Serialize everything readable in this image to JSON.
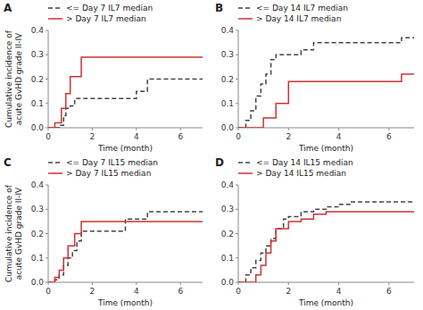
{
  "chart_data": [
    {
      "type": "step",
      "title": "A",
      "xlabel": "Time (month)",
      "ylabel": "Cumulative incidence of acute GvHD grade II-IV",
      "xlim": [
        0,
        7
      ],
      "ylim": [
        0,
        0.4
      ],
      "xticks": [
        0,
        2,
        4,
        6
      ],
      "yticks": [
        {
          "value": 0.0,
          "label": "0.0"
        },
        0.1,
        0.2,
        0.3,
        0.4
      ],
      "legend": "upper left",
      "series": [
        {
          "name": "<= Day 7 IL7 median",
          "color": "#444444",
          "line_style": "dashed",
          "x": [
            0,
            0.3,
            0.5,
            0.7,
            0.8,
            1.0,
            1.2,
            1.5,
            2.0,
            4.0,
            4.5,
            7.0
          ],
          "values": [
            0,
            0.0,
            0.01,
            0.05,
            0.08,
            0.09,
            0.12,
            0.12,
            0.12,
            0.15,
            0.2,
            0.2
          ]
        },
        {
          "name": "> Day 7 IL7 median",
          "color": "#cc3333",
          "line_style": "solid",
          "x": [
            0,
            0.3,
            0.6,
            0.8,
            1.0,
            1.5,
            2.0,
            7.0
          ],
          "values": [
            0,
            0.02,
            0.08,
            0.14,
            0.21,
            0.29,
            0.29,
            0.29
          ]
        }
      ]
    },
    {
      "type": "step",
      "title": "B",
      "xlabel": "Time (month)",
      "xlim": [
        0,
        7
      ],
      "ylim": [
        0,
        0.4
      ],
      "xticks": [
        0,
        2,
        4,
        6
      ],
      "yticks": [
        {
          "value": 0.0,
          "label": "0.0"
        },
        0.1,
        0.2,
        0.3,
        0.4
      ],
      "legend": "upper left",
      "series": [
        {
          "name": "<= Day 14 IL7 median",
          "color": "#444444",
          "line_style": "dashed",
          "x": [
            0,
            0.3,
            0.5,
            0.7,
            0.9,
            1.1,
            1.3,
            1.5,
            2.0,
            2.5,
            3.0,
            5.0,
            6.5,
            7.0
          ],
          "values": [
            0,
            0.03,
            0.07,
            0.13,
            0.18,
            0.22,
            0.28,
            0.3,
            0.3,
            0.32,
            0.35,
            0.35,
            0.37,
            0.37
          ]
        },
        {
          "name": "> Day 14 IL7 median",
          "color": "#cc3333",
          "line_style": "solid",
          "x": [
            0,
            0.5,
            1.0,
            1.5,
            2.0,
            4.5,
            6.5,
            7.0
          ],
          "values": [
            0,
            0.0,
            0.04,
            0.1,
            0.19,
            0.19,
            0.22,
            0.22
          ]
        }
      ]
    },
    {
      "type": "step",
      "title": "C",
      "xlabel": "Time (month)",
      "ylabel": "Cumulative incidence of acute GvHD grade II-IV",
      "xlim": [
        0,
        7
      ],
      "ylim": [
        0,
        0.4
      ],
      "xticks": [
        0,
        2,
        4,
        6
      ],
      "yticks": [
        {
          "value": 0.0,
          "label": "0.0"
        },
        0.1,
        0.2,
        0.3,
        0.4
      ],
      "legend": "upper left",
      "series": [
        {
          "name": "<= Day 7 IL15 median",
          "color": "#444444",
          "line_style": "dashed",
          "x": [
            0,
            0.3,
            0.5,
            0.7,
            0.9,
            1.1,
            1.3,
            1.5,
            1.8,
            2.5,
            3.5,
            4.5,
            7.0
          ],
          "values": [
            0,
            0.01,
            0.03,
            0.07,
            0.1,
            0.13,
            0.17,
            0.21,
            0.21,
            0.21,
            0.26,
            0.29,
            0.29
          ]
        },
        {
          "name": "> Day 7 IL15 median",
          "color": "#cc3333",
          "line_style": "solid",
          "x": [
            0,
            0.3,
            0.5,
            0.7,
            0.9,
            1.2,
            1.5,
            2.0,
            4.0,
            7.0
          ],
          "values": [
            0,
            0.02,
            0.05,
            0.1,
            0.15,
            0.2,
            0.25,
            0.25,
            0.25,
            0.25
          ]
        }
      ]
    },
    {
      "type": "step",
      "title": "D",
      "xlabel": "Time (month)",
      "xlim": [
        0,
        7
      ],
      "ylim": [
        0,
        0.4
      ],
      "xticks": [
        0,
        2,
        4,
        6
      ],
      "yticks": [
        {
          "value": 0.0,
          "label": "0.0"
        },
        0.1,
        0.2,
        0.3,
        0.4
      ],
      "legend": "upper left",
      "series": [
        {
          "name": "<= Day 14 IL15 median",
          "color": "#444444",
          "line_style": "dashed",
          "x": [
            0,
            0.3,
            0.5,
            0.7,
            0.9,
            1.1,
            1.3,
            1.5,
            1.8,
            2.0,
            2.5,
            3.0,
            3.5,
            4.0,
            4.5,
            5.0,
            7.0
          ],
          "values": [
            0,
            0.03,
            0.06,
            0.09,
            0.12,
            0.15,
            0.18,
            0.22,
            0.26,
            0.27,
            0.29,
            0.3,
            0.31,
            0.32,
            0.33,
            0.33,
            0.33
          ]
        },
        {
          "name": "> Day 14 IL15 median",
          "color": "#cc3333",
          "line_style": "solid",
          "x": [
            0,
            0.5,
            0.7,
            0.9,
            1.1,
            1.3,
            1.5,
            2.0,
            2.5,
            3.0,
            3.5,
            4.5,
            7.0
          ],
          "values": [
            0,
            0.0,
            0.03,
            0.07,
            0.12,
            0.17,
            0.22,
            0.25,
            0.26,
            0.28,
            0.29,
            0.29,
            0.29
          ]
        }
      ]
    }
  ]
}
